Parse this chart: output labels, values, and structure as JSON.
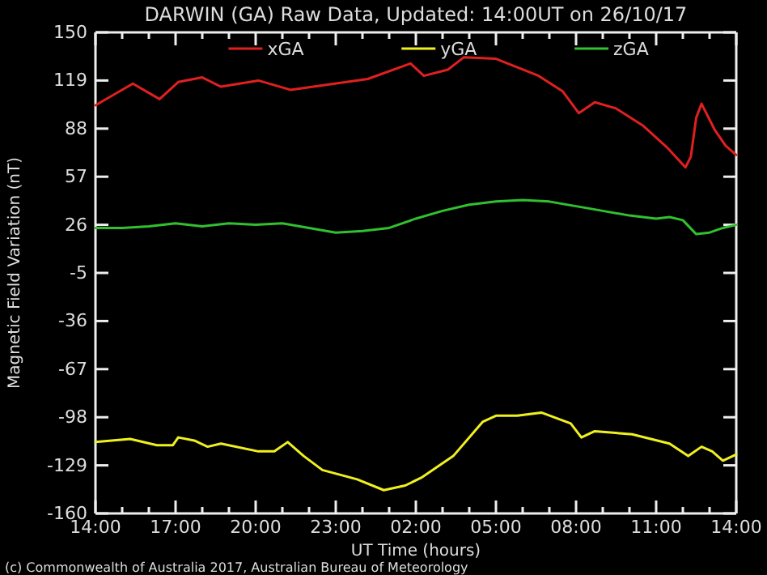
{
  "chart_data": {
    "type": "line",
    "title": "DARWIN (GA) Raw Data, Updated: 14:00UT on 26/10/17",
    "xlabel": "UT Time (hours)",
    "ylabel": "Magnetic Field Variation (nT)",
    "annotations": [
      "(c) Commonwealth of Australia 2017, Australian Bureau of Meteorology"
    ],
    "legend": "top",
    "grid": false,
    "line_style": "solid",
    "marker": "none",
    "xlim": [
      "2017-10-25T14:00",
      "2017-10-26T14:00"
    ],
    "ylim": [
      -160,
      150
    ],
    "yticks": [
      -160,
      -129,
      -98,
      -67,
      -36,
      -5,
      26,
      57,
      88,
      119,
      150
    ],
    "xticks": [
      {
        "value": "2017-10-25T14:00",
        "label": "14:00"
      },
      {
        "value": "2017-10-25T15:00",
        "label": null
      },
      {
        "value": "2017-10-25T16:00",
        "label": null
      },
      {
        "value": "2017-10-25T17:00",
        "label": "17:00"
      },
      {
        "value": "2017-10-25T18:00",
        "label": null
      },
      {
        "value": "2017-10-25T19:00",
        "label": null
      },
      {
        "value": "2017-10-25T20:00",
        "label": "20:00"
      },
      {
        "value": "2017-10-25T21:00",
        "label": null
      },
      {
        "value": "2017-10-25T22:00",
        "label": null
      },
      {
        "value": "2017-10-25T23:00",
        "label": "23:00"
      },
      {
        "value": "2017-10-26T00:00",
        "label": null
      },
      {
        "value": "2017-10-26T01:00",
        "label": null
      },
      {
        "value": "2017-10-26T02:00",
        "label": "02:00"
      },
      {
        "value": "2017-10-26T03:00",
        "label": null
      },
      {
        "value": "2017-10-26T04:00",
        "label": null
      },
      {
        "value": "2017-10-26T05:00",
        "label": "05:00"
      },
      {
        "value": "2017-10-26T06:00",
        "label": null
      },
      {
        "value": "2017-10-26T07:00",
        "label": null
      },
      {
        "value": "2017-10-26T08:00",
        "label": "08:00"
      },
      {
        "value": "2017-10-26T09:00",
        "label": null
      },
      {
        "value": "2017-10-26T10:00",
        "label": null
      },
      {
        "value": "2017-10-26T11:00",
        "label": "11:00"
      },
      {
        "value": "2017-10-26T12:00",
        "label": null
      },
      {
        "value": "2017-10-26T13:00",
        "label": null
      },
      {
        "value": "2017-10-26T14:00",
        "label": "14:00"
      }
    ],
    "series": [
      {
        "name": "xGA",
        "color": "#e02020",
        "x": [
          "2017-10-25T14:00",
          "2017-10-25T15:24",
          "2017-10-25T16:24",
          "2017-10-25T17:06",
          "2017-10-25T18:00",
          "2017-10-25T18:42",
          "2017-10-25T20:06",
          "2017-10-25T21:18",
          "2017-10-26T00:12",
          "2017-10-26T01:48",
          "2017-10-26T02:18",
          "2017-10-26T03:12",
          "2017-10-26T03:48",
          "2017-10-26T05:00",
          "2017-10-26T06:36",
          "2017-10-26T07:30",
          "2017-10-26T08:06",
          "2017-10-26T08:42",
          "2017-10-26T09:30",
          "2017-10-26T10:30",
          "2017-10-26T11:24",
          "2017-10-26T12:06",
          "2017-10-26T12:18",
          "2017-10-26T12:30",
          "2017-10-26T12:42",
          "2017-10-26T13:12",
          "2017-10-26T13:36",
          "2017-10-26T14:00"
        ],
        "values": [
          103,
          117,
          107,
          118,
          121,
          115,
          119,
          113,
          120,
          130,
          122,
          126,
          134,
          133,
          122,
          112,
          98,
          105,
          101,
          90,
          76,
          63,
          70,
          95,
          104,
          87,
          77,
          71
        ]
      },
      {
        "name": "yGA",
        "color": "#f0f020",
        "x": [
          "2017-10-25T14:00",
          "2017-10-25T15:18",
          "2017-10-25T16:18",
          "2017-10-25T16:54",
          "2017-10-25T17:06",
          "2017-10-25T17:42",
          "2017-10-25T18:12",
          "2017-10-25T18:42",
          "2017-10-25T20:06",
          "2017-10-25T20:42",
          "2017-10-25T21:12",
          "2017-10-25T21:48",
          "2017-10-25T22:30",
          "2017-10-25T23:48",
          "2017-10-26T00:48",
          "2017-10-26T01:36",
          "2017-10-26T02:12",
          "2017-10-26T03:24",
          "2017-10-26T04:30",
          "2017-10-26T05:00",
          "2017-10-26T05:48",
          "2017-10-26T06:42",
          "2017-10-26T07:48",
          "2017-10-26T08:12",
          "2017-10-26T08:42",
          "2017-10-26T10:06",
          "2017-10-26T11:30",
          "2017-10-26T12:12",
          "2017-10-26T12:42",
          "2017-10-26T13:06",
          "2017-10-26T13:30",
          "2017-10-26T14:00"
        ],
        "values": [
          -114,
          -112,
          -116,
          -116,
          -111,
          -113,
          -117,
          -115,
          -120,
          -120,
          -114,
          -123,
          -132,
          -138,
          -145,
          -142,
          -137,
          -123,
          -101,
          -97,
          -97,
          -95,
          -102,
          -111,
          -107,
          -109,
          -115,
          -123,
          -117,
          -120,
          -126,
          -122
        ]
      },
      {
        "name": "zGA",
        "color": "#30c030",
        "x": [
          "2017-10-25T14:00",
          "2017-10-25T15:00",
          "2017-10-25T16:00",
          "2017-10-25T17:00",
          "2017-10-25T18:00",
          "2017-10-25T19:00",
          "2017-10-25T20:00",
          "2017-10-25T21:00",
          "2017-10-25T22:00",
          "2017-10-25T23:00",
          "2017-10-26T00:00",
          "2017-10-26T01:00",
          "2017-10-26T02:00",
          "2017-10-26T03:00",
          "2017-10-26T04:00",
          "2017-10-26T05:00",
          "2017-10-26T06:00",
          "2017-10-26T07:00",
          "2017-10-26T08:00",
          "2017-10-26T09:00",
          "2017-10-26T10:00",
          "2017-10-26T11:00",
          "2017-10-26T11:30",
          "2017-10-26T12:00",
          "2017-10-26T12:30",
          "2017-10-26T13:00",
          "2017-10-26T13:30",
          "2017-10-26T14:00"
        ],
        "values": [
          24,
          24,
          25,
          27,
          25,
          27,
          26,
          27,
          24,
          21,
          22,
          24,
          30,
          35,
          39,
          41,
          42,
          41,
          38,
          35,
          32,
          30,
          31,
          29,
          20,
          21,
          24,
          26
        ]
      }
    ]
  }
}
